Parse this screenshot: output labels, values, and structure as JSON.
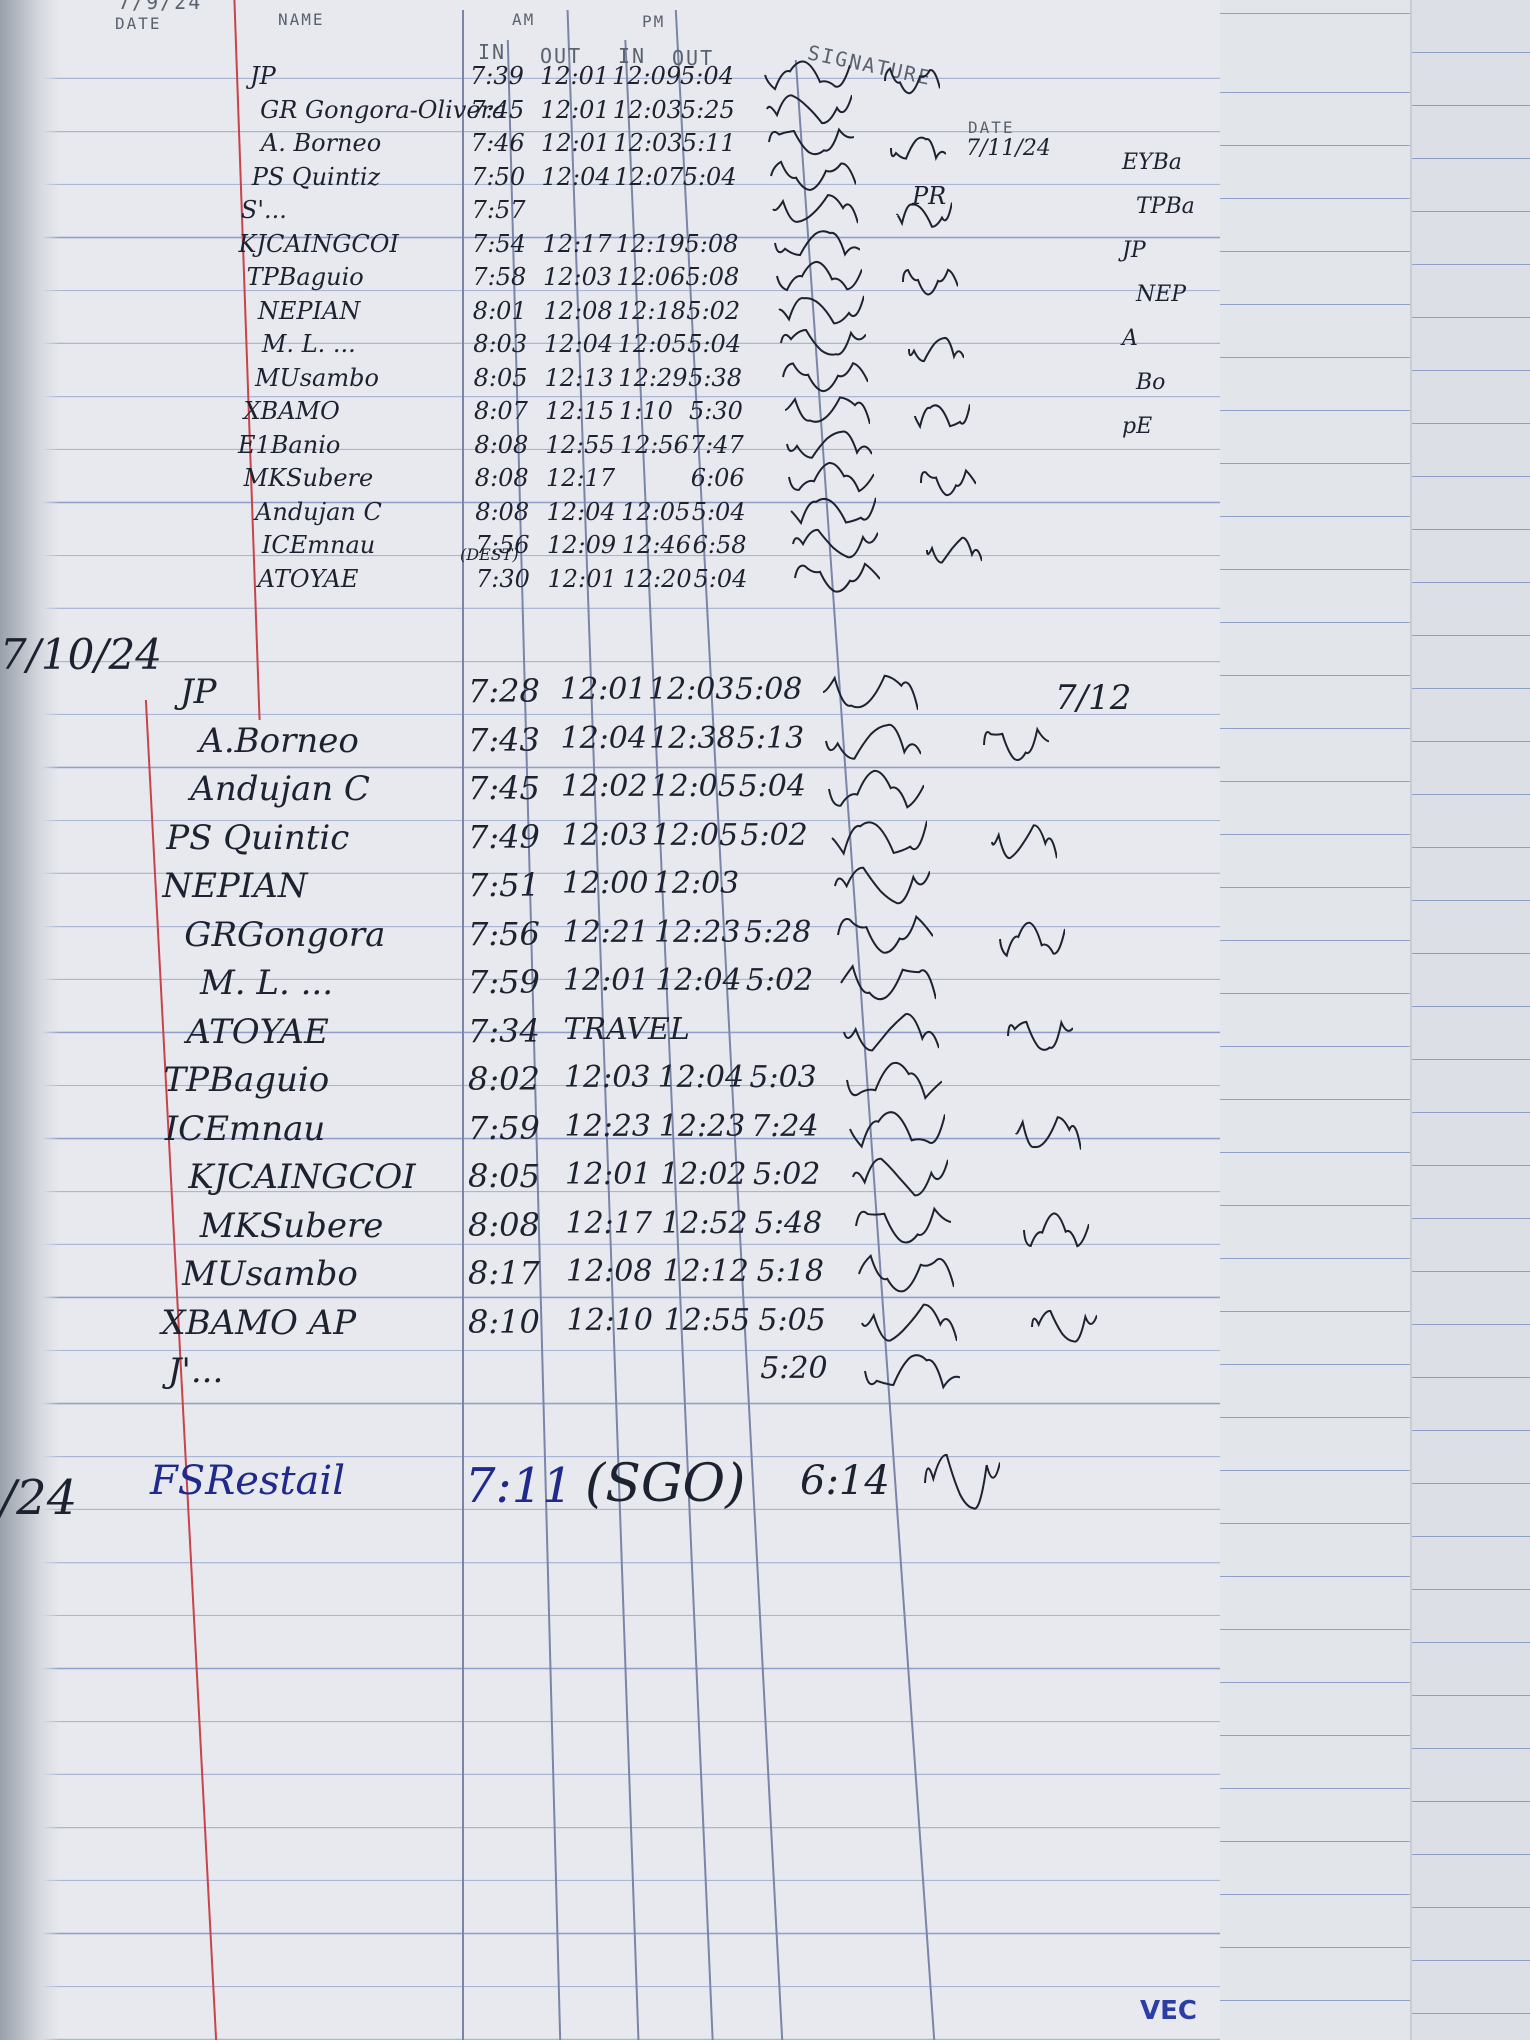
{
  "header": {
    "top_date": "7/9/24",
    "date_label": "DATE",
    "name_label": "NAME",
    "am_label": "AM",
    "pm_label": "PM",
    "in_label": "IN",
    "out_label": "OUT",
    "signature_label": "SIGNATURE"
  },
  "right_page": {
    "date_label": "DATE",
    "date_value": "7/11/24",
    "partial_entries": [
      "EYBa",
      "TPBa",
      "JP",
      "NEP",
      "A",
      "Bo",
      "pE"
    ],
    "side_mark": "7/12",
    "pn_mark": "PR"
  },
  "section1": {
    "rows": [
      {
        "name": "JP",
        "am_in": "7:39",
        "am_out": "12:01",
        "pm_in": "12:09",
        "pm_out": "5:04"
      },
      {
        "name": "GR Gongora-Olivera",
        "am_in": "7:45",
        "am_out": "12:01",
        "pm_in": "12:03",
        "pm_out": "5:25"
      },
      {
        "name": "A. Borneo",
        "am_in": "7:46",
        "am_out": "12:01",
        "pm_in": "12:03",
        "pm_out": "5:11"
      },
      {
        "name": "PS Quintiz",
        "am_in": "7:50",
        "am_out": "12:04",
        "pm_in": "12:07",
        "pm_out": "5:04"
      },
      {
        "name": "S'...",
        "am_in": "7:57",
        "am_out": "",
        "pm_in": "",
        "pm_out": ""
      },
      {
        "name": "KJCAINGCOI",
        "am_in": "7:54",
        "am_out": "12:17",
        "pm_in": "12:19",
        "pm_out": "5:08"
      },
      {
        "name": "TPBaguio",
        "am_in": "7:58",
        "am_out": "12:03",
        "pm_in": "12:06",
        "pm_out": "5:08"
      },
      {
        "name": "NEPIAN",
        "am_in": "8:01",
        "am_out": "12:08",
        "pm_in": "12:18",
        "pm_out": "5:02"
      },
      {
        "name": "M. L. ...",
        "am_in": "8:03",
        "am_out": "12:04",
        "pm_in": "12:05",
        "pm_out": "5:04"
      },
      {
        "name": "MUsambo",
        "am_in": "8:05",
        "am_out": "12:13",
        "pm_in": "12:29",
        "pm_out": "5:38"
      },
      {
        "name": "XBAMO",
        "am_in": "8:07",
        "am_out": "12:15",
        "pm_in": "1:10",
        "pm_out": "5:30"
      },
      {
        "name": "E1Banio",
        "am_in": "8:08",
        "am_out": "12:55",
        "pm_in": "12:56",
        "pm_out": "7:47"
      },
      {
        "name": "MKSubere",
        "am_in": "8:08",
        "am_out": "12:17",
        "pm_in": "",
        "pm_out": "6:06"
      },
      {
        "name": "Andujan C",
        "am_in": "8:08",
        "am_out": "12:04",
        "pm_in": "12:05",
        "pm_out": "5:04"
      },
      {
        "name": "ICEmnau",
        "am_in": "7:56",
        "am_out": "12:09",
        "pm_in": "12:46",
        "pm_out": "6:58"
      },
      {
        "name": "ATOYAE",
        "am_in": "7:30",
        "am_out": "12:01",
        "pm_in": "12:20",
        "pm_out": "5:04",
        "note": "(DEST)"
      }
    ]
  },
  "section2": {
    "date": "7/10/24",
    "rows": [
      {
        "name": "JP",
        "am_in": "7:28",
        "am_out": "12:01",
        "pm_in": "12:03",
        "pm_out": "5:08"
      },
      {
        "name": "A.Borneo",
        "am_in": "7:43",
        "am_out": "12:04",
        "pm_in": "12:38",
        "pm_out": "5:13"
      },
      {
        "name": "Andujan C",
        "am_in": "7:45",
        "am_out": "12:02",
        "pm_in": "12:05",
        "pm_out": "5:04"
      },
      {
        "name": "PS Quintic",
        "am_in": "7:49",
        "am_out": "12:03",
        "pm_in": "12:05",
        "pm_out": "5:02"
      },
      {
        "name": "NEPIAN",
        "am_in": "7:51",
        "am_out": "12:00",
        "pm_in": "12:03",
        "pm_out": ""
      },
      {
        "name": "GRGongora",
        "am_in": "7:56",
        "am_out": "12:21",
        "pm_in": "12:23",
        "pm_out": "5:28"
      },
      {
        "name": "M. L. ...",
        "am_in": "7:59",
        "am_out": "12:01",
        "pm_in": "12:04",
        "pm_out": "5:02"
      },
      {
        "name": "ATOYAE",
        "am_in": "7:34",
        "am_out": "TRAVEL",
        "pm_in": "",
        "pm_out": ""
      },
      {
        "name": "TPBaguio",
        "am_in": "8:02",
        "am_out": "12:03",
        "pm_in": "12:04",
        "pm_out": "5:03"
      },
      {
        "name": "ICEmnau",
        "am_in": "7:59",
        "am_out": "12:23",
        "pm_in": "12:23",
        "pm_out": "7:24"
      },
      {
        "name": "KJCAINGCOI",
        "am_in": "8:05",
        "am_out": "12:01",
        "pm_in": "12:02",
        "pm_out": "5:02"
      },
      {
        "name": "MKSubere",
        "am_in": "8:08",
        "am_out": "12:17",
        "pm_in": "12:52",
        "pm_out": "5:48"
      },
      {
        "name": "MUsambo",
        "am_in": "8:17",
        "am_out": "12:08",
        "pm_in": "12:12",
        "pm_out": "5:18"
      },
      {
        "name": "XBAMO AP",
        "am_in": "8:10",
        "am_out": "12:10",
        "pm_in": "12:55",
        "pm_out": "5:05"
      },
      {
        "name": "J'...",
        "am_in": "",
        "am_out": "",
        "pm_in": "",
        "pm_out": "5:20"
      }
    ]
  },
  "section3": {
    "date": "/24",
    "rows": [
      {
        "name": "FSRestail",
        "am_in": "7:11",
        "note": "(SGO)",
        "pm_out": "6:14"
      }
    ]
  },
  "bottom_logo_fragment": "VEC"
}
